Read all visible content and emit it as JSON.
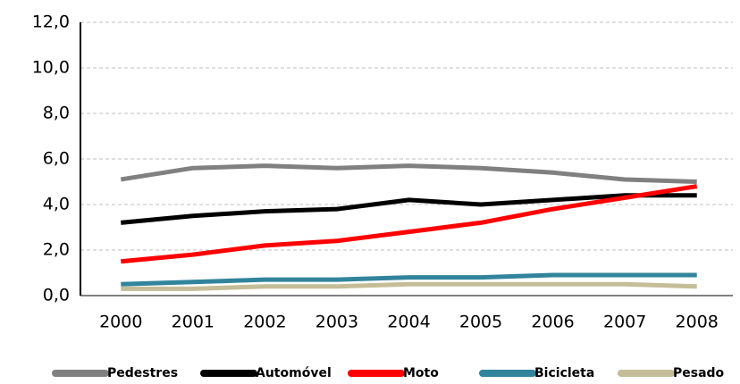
{
  "chart_data": {
    "type": "line",
    "categories": [
      "2000",
      "2001",
      "2002",
      "2003",
      "2004",
      "2005",
      "2006",
      "2007",
      "2008"
    ],
    "series": [
      {
        "name": "Pedestres",
        "color": "#808080",
        "values": [
          5.1,
          5.6,
          5.7,
          5.6,
          5.7,
          5.6,
          5.4,
          5.1,
          5.0
        ]
      },
      {
        "name": "Automóvel",
        "color": "#000000",
        "values": [
          3.2,
          3.5,
          3.7,
          3.8,
          4.2,
          4.0,
          4.2,
          4.4,
          4.4
        ]
      },
      {
        "name": "Moto",
        "color": "#ff0000",
        "values": [
          1.5,
          1.8,
          2.2,
          2.4,
          2.8,
          3.2,
          3.8,
          4.3,
          4.8
        ]
      },
      {
        "name": "Bicicleta",
        "color": "#31849b",
        "values": [
          0.5,
          0.6,
          0.7,
          0.7,
          0.8,
          0.8,
          0.9,
          0.9,
          0.9
        ]
      },
      {
        "name": "Pesado",
        "color": "#c4bd97",
        "values": [
          0.3,
          0.3,
          0.4,
          0.4,
          0.5,
          0.5,
          0.5,
          0.5,
          0.4
        ]
      }
    ],
    "ylim": [
      0,
      12
    ],
    "yticks": [
      {
        "value": 0,
        "label": "0,0"
      },
      {
        "value": 2,
        "label": "2,0"
      },
      {
        "value": 4,
        "label": "4,0"
      },
      {
        "value": 6,
        "label": "6,0"
      },
      {
        "value": 8,
        "label": "8,0"
      },
      {
        "value": 10,
        "label": "10,0"
      },
      {
        "value": 12,
        "label": "12,0"
      }
    ],
    "grid": true,
    "legend": "bottom"
  }
}
